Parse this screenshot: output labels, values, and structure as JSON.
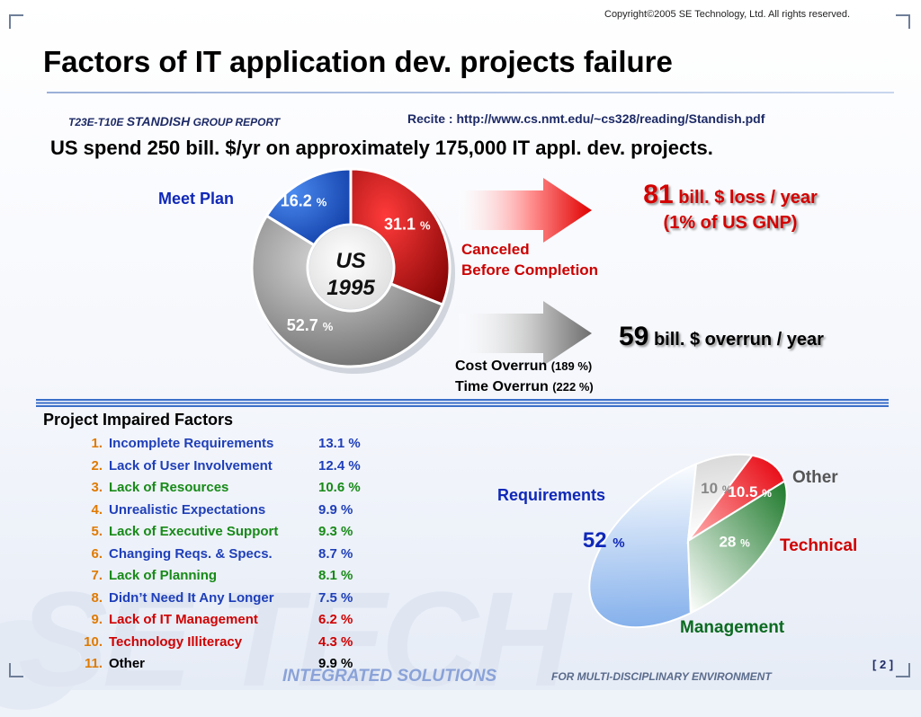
{
  "copyright": "Copyright©2005 SE Technology, Ltd. All rights reserved.",
  "title": "Factors of IT application dev. projects failure",
  "report": {
    "prefix": "T23E-T10E",
    "standish": "STANDISH",
    "suffix": "GROUP REPORT"
  },
  "recite": "Recite : http://www.cs.nmt.edu/~cs328/reading/Standish.pdf",
  "spend_text": "US spend 250 bill. $/yr on approximately 175,000 IT appl. dev. projects.",
  "donut_labels": {
    "meet_plan": "Meet Plan",
    "canceled_line1": "Canceled",
    "canceled_line2": "Before Completion",
    "center_line1": "US",
    "center_line2": "1995"
  },
  "loss": {
    "num": "81",
    "line1_rest": "bill. $ loss / year",
    "line2": "(1% of US GNP)"
  },
  "overrun": {
    "num": "59",
    "rest": "bill. $ overrun / year"
  },
  "cost_overrun": {
    "label": "Cost Overrun",
    "value": "(189 %)"
  },
  "time_overrun": {
    "label": "Time Overrun",
    "value": "(222 %)"
  },
  "factors_heading": "Project Impaired Factors",
  "factors": [
    {
      "num": "1.",
      "label": "Incomplete Requirements",
      "pct": "13.1 %",
      "color": "blue"
    },
    {
      "num": "2.",
      "label": "Lack of User Involvement",
      "pct": "12.4 %",
      "color": "blue"
    },
    {
      "num": "3.",
      "label": "Lack of Resources",
      "pct": "10.6 %",
      "color": "green"
    },
    {
      "num": "4.",
      "label": "Unrealistic Expectations",
      "pct": "9.9 %",
      "color": "blue"
    },
    {
      "num": "5.",
      "label": "Lack of Executive Support",
      "pct": "9.3 %",
      "color": "green"
    },
    {
      "num": "6.",
      "label": "Changing Reqs. & Specs.",
      "pct": "8.7 %",
      "color": "blue"
    },
    {
      "num": "7.",
      "label": "Lack of Planning",
      "pct": "8.1 %",
      "color": "green"
    },
    {
      "num": "8.",
      "label": "Didn’t Need It Any Longer",
      "pct": "7.5 %",
      "color": "blue"
    },
    {
      "num": "9.",
      "label": "Lack of IT Management",
      "pct": "6.2 %",
      "color": "red"
    },
    {
      "num": "10.",
      "label": "Technology Illiteracy",
      "pct": "4.3 %",
      "color": "red"
    },
    {
      "num": "11.",
      "label": "Other",
      "pct": "9.9 %",
      "color": "black"
    }
  ],
  "page_number": "[ 2 ]",
  "footer": {
    "main": "INTEGRATED SOLUTIONS",
    "sub": "FOR MULTI-DISCIPLINARY ENVIRONMENT"
  },
  "watermark": "SE TECH",
  "colors": {
    "red": "#c00000",
    "blue": "#1f5fd6",
    "gray": "#8c8c8c",
    "green": "#2e8b3a",
    "accent_blue": "#1028b8"
  },
  "chart_data": [
    {
      "type": "pie",
      "variant": "donut",
      "categories": [
        "Meet Plan",
        "Canceled Before Completion",
        "Cost Overrun / Time Overrun"
      ],
      "values": [
        16.2,
        31.1,
        52.7
      ],
      "value_labels": [
        "16.2",
        "31.1",
        "52.7"
      ],
      "unit": "%",
      "colors": [
        "#1f5fd6",
        "#c00000",
        "#8c8c8c"
      ],
      "start_angle_deg": 0,
      "center_text": "US 1995"
    },
    {
      "type": "pie",
      "variant": "tilted-ellipse",
      "categories": [
        "Requirements",
        "Other",
        "Technical",
        "Management"
      ],
      "values": [
        52,
        10,
        10.5,
        28
      ],
      "value_labels": [
        "52",
        "10",
        "10.5",
        "28"
      ],
      "unit": "%",
      "colors": [
        "#8cb8ee",
        "#e6e6e6",
        "#e8242a",
        "#2e8b3a"
      ]
    }
  ]
}
